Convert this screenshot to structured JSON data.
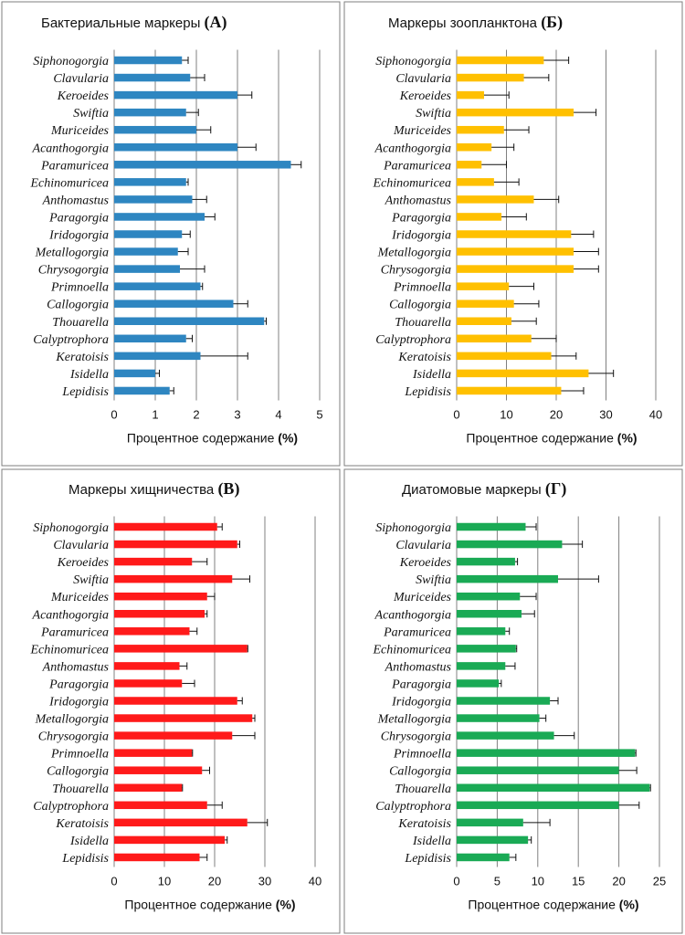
{
  "figure": {
    "categories": [
      "Siphonogorgia",
      "Clavularia",
      "Keroeides",
      "Swiftia",
      "Muriceides",
      "Acanthogorgia",
      "Paramuricea",
      "Echinomuricea",
      "Anthomastus",
      "Paragorgia",
      "Iridogorgia",
      "Metallogorgia",
      "Chrysogorgia",
      "Primnoella",
      "Callogorgia",
      "Thouarella",
      "Calyptrophora",
      "Keratoisis",
      "Isidella",
      "Lepidisis"
    ]
  },
  "chart_data": [
    {
      "type": "bar",
      "orientation": "horizontal",
      "title": "Бактериальные маркеры",
      "panel_letter": "(A)",
      "xlabel": "Процентное содержание",
      "xlabel_unit": "(%)",
      "color": "#2e86c1",
      "xlim": [
        0,
        5
      ],
      "xticks": [
        "0",
        "1",
        "2",
        "3",
        "4",
        "5"
      ],
      "grid": true,
      "values": [
        1.65,
        1.85,
        3.0,
        1.75,
        2.0,
        3.0,
        4.3,
        1.75,
        1.9,
        2.2,
        1.65,
        1.55,
        1.6,
        2.1,
        2.9,
        3.65,
        1.75,
        2.1,
        1.0,
        1.35
      ],
      "errors": [
        0.15,
        0.35,
        0.35,
        0.3,
        0.35,
        0.45,
        0.25,
        0.05,
        0.35,
        0.25,
        0.2,
        0.25,
        0.6,
        0.05,
        0.35,
        0.05,
        0.15,
        1.15,
        0.1,
        0.1
      ]
    },
    {
      "type": "bar",
      "orientation": "horizontal",
      "title": "Маркеры зоопланктона",
      "panel_letter": "(Б)",
      "xlabel": "Процентное содержание",
      "xlabel_unit": "(%)",
      "color": "#ffc000",
      "xlim": [
        0,
        40
      ],
      "xticks": [
        "0",
        "10",
        "20",
        "30",
        "40"
      ],
      "grid": true,
      "values": [
        17.5,
        13.5,
        5.5,
        23.5,
        9.5,
        7.0,
        5.0,
        7.5,
        15.5,
        9.0,
        23.0,
        23.5,
        23.5,
        10.5,
        11.5,
        11.0,
        15.0,
        19.0,
        26.5,
        21.0
      ],
      "errors": [
        5.0,
        5.0,
        5.0,
        4.5,
        5.0,
        4.5,
        5.0,
        5.0,
        5.0,
        5.0,
        4.5,
        5.0,
        5.0,
        5.0,
        5.0,
        5.0,
        5.0,
        5.0,
        5.0,
        4.5
      ]
    },
    {
      "type": "bar",
      "orientation": "horizontal",
      "title": "Маркеры хищничества",
      "panel_letter": "(В)",
      "xlabel": "Процентное содержание",
      "xlabel_unit": "(%)",
      "color": "#ff1a1a",
      "xlim": [
        0,
        40
      ],
      "xticks": [
        "0",
        "10",
        "20",
        "30",
        "40"
      ],
      "grid": true,
      "values": [
        20.5,
        24.5,
        15.5,
        23.5,
        18.5,
        18.0,
        15.0,
        26.5,
        13.0,
        13.5,
        24.5,
        27.5,
        23.5,
        15.5,
        17.5,
        13.5,
        18.5,
        26.5,
        22.0,
        17.0
      ],
      "errors": [
        1.0,
        0.5,
        3.0,
        3.5,
        1.5,
        0.5,
        1.5,
        0.1,
        1.5,
        2.5,
        1.0,
        0.5,
        4.5,
        0.1,
        1.5,
        0.1,
        3.0,
        4.0,
        0.5,
        1.5
      ]
    },
    {
      "type": "bar",
      "orientation": "horizontal",
      "title": "Диатомовые маркеры",
      "panel_letter": "(Г)",
      "xlabel": "Процентное содержание",
      "xlabel_unit": "(%)",
      "color": "#1aaa55",
      "xlim": [
        0,
        25
      ],
      "xticks": [
        "0",
        "5",
        "10",
        "15",
        "20",
        "25"
      ],
      "grid": true,
      "values": [
        8.5,
        13.0,
        7.2,
        12.5,
        7.8,
        8.0,
        6.0,
        7.3,
        6.0,
        5.2,
        11.5,
        10.2,
        12.0,
        22.0,
        20.0,
        23.8,
        20.0,
        8.2,
        8.8,
        6.5
      ],
      "errors": [
        1.3,
        2.5,
        0.3,
        5.0,
        2.0,
        1.6,
        0.5,
        0.1,
        1.2,
        0.3,
        1.0,
        0.8,
        2.5,
        0.1,
        2.2,
        0.1,
        2.5,
        3.3,
        0.4,
        0.8
      ]
    }
  ]
}
